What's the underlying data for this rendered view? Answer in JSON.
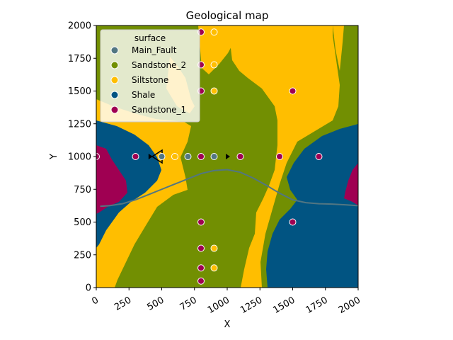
{
  "chart_data": {
    "type": "scatter",
    "title": "Geological map",
    "xlabel": "X",
    "ylabel": "Y",
    "xlim": [
      0,
      2000
    ],
    "ylim": [
      0,
      2000
    ],
    "xticks": [
      "0",
      "250",
      "500",
      "750",
      "1000",
      "1250",
      "1500",
      "1750",
      "2000"
    ],
    "yticks": [
      "0",
      "250",
      "500",
      "750",
      "1000",
      "1250",
      "1500",
      "1750",
      "2000"
    ],
    "xtick_rotation": 30,
    "legend": {
      "title": "surface",
      "placement": "top-left",
      "entries": [
        "Main_Fault",
        "Sandstone_2",
        "Siltstone",
        "Shale",
        "Sandstone_1"
      ]
    },
    "colors": {
      "Main_Fault": "#527682",
      "Sandstone_2": "#728f02",
      "Siltstone": "#ffbe00",
      "Shale": "#015482",
      "Sandstone_1": "#9f0052",
      "fault_line": "#527682"
    },
    "series": [
      {
        "name": "Main_Fault",
        "x": [
          500,
          700,
          900
        ],
        "y": [
          1000,
          1000,
          1000
        ]
      },
      {
        "name": "Siltstone",
        "x": [
          900,
          900,
          900,
          600,
          900,
          900
        ],
        "y": [
          1950,
          1700,
          1500,
          1000,
          300,
          150
        ]
      },
      {
        "name": "Sandstone_1",
        "x": [
          800,
          800,
          800,
          0,
          300,
          800,
          1100,
          1400,
          1700,
          800,
          800,
          800,
          800,
          1500,
          1500
        ],
        "y": [
          1950,
          1700,
          1500,
          1000,
          1000,
          1000,
          1000,
          1000,
          1000,
          500,
          300,
          150,
          50,
          1500,
          500
        ]
      }
    ],
    "orientation_markers": [
      {
        "x": 410,
        "y": 1000,
        "direction": "right"
      },
      {
        "x": 465,
        "y": 1000,
        "direction": "left",
        "style": "outline"
      },
      {
        "x": 1000,
        "y": 1000,
        "direction": "right"
      }
    ],
    "fault_trace": {
      "x": [
        30,
        100,
        200,
        300,
        400,
        500,
        600,
        700,
        800,
        900,
        1000,
        1100,
        1200,
        1300,
        1400,
        1500,
        1600,
        1700,
        1800,
        1900,
        2000
      ],
      "y": [
        620,
        625,
        640,
        670,
        710,
        750,
        790,
        830,
        870,
        893,
        900,
        880,
        835,
        780,
        720,
        670,
        648,
        640,
        637,
        632,
        625
      ]
    }
  }
}
